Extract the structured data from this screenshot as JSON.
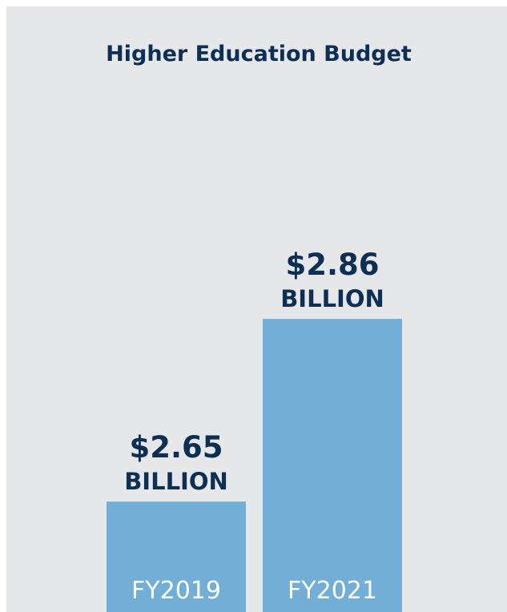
{
  "chart_data": {
    "type": "bar",
    "title": "Higher Education Budget",
    "categories": [
      "FY2019",
      "FY2021"
    ],
    "values": [
      2.65,
      2.86
    ],
    "value_labels": [
      "$2.65",
      "$2.86"
    ],
    "unit_label": "BILLION",
    "xlabel": "",
    "ylabel": "",
    "grid": false,
    "legend": "none",
    "colors": {
      "bar": "#72aed5",
      "text": "#0d2f55",
      "category_text": "#ffffff",
      "background": "#e6e7e9"
    }
  }
}
